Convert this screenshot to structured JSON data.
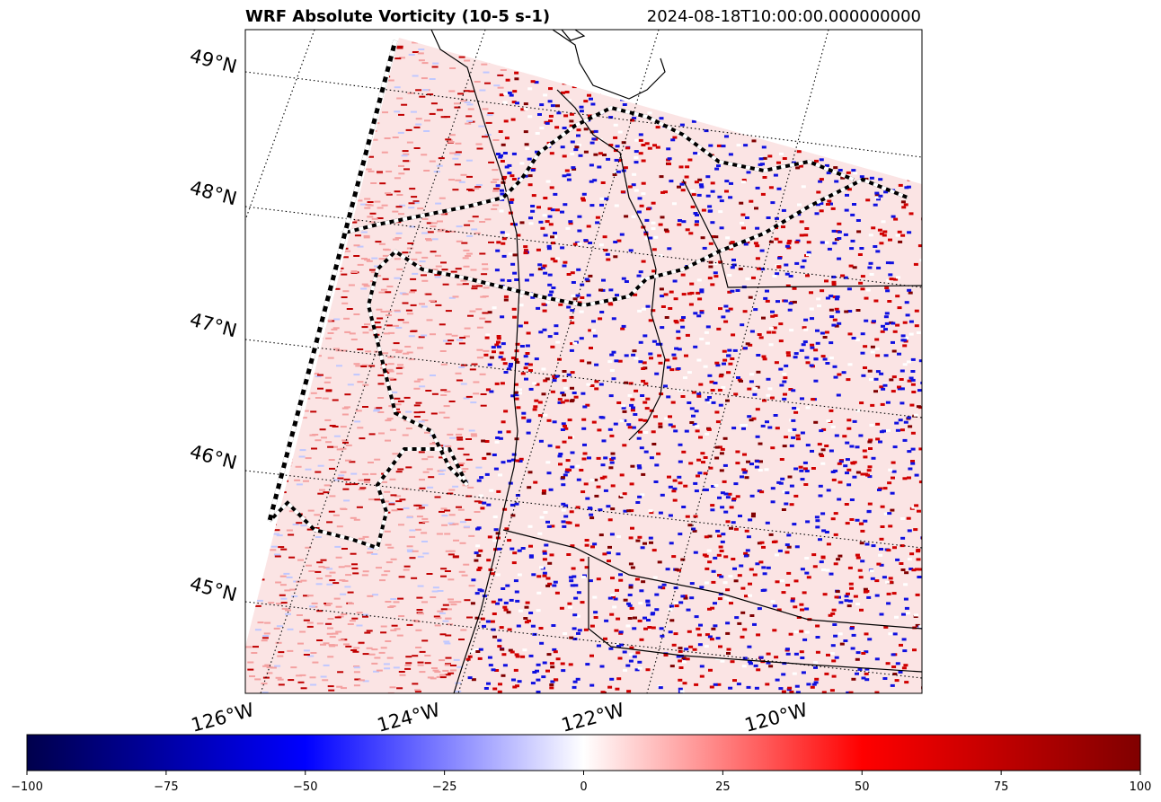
{
  "title": "WRF Absolute Vorticity (10-5 s-1)",
  "valid_time": "2024-08-18T10:00:00.000000000",
  "map": {
    "latitude_labels": [
      "49°N",
      "48°N",
      "47°N",
      "46°N",
      "45°N"
    ],
    "longitude_labels": [
      "126°W",
      "124°W",
      "122°W",
      "120°W"
    ],
    "field": "absolute vorticity",
    "colormap": "seismic",
    "gridlines": "dotted"
  },
  "colorbar": {
    "min": -100,
    "max": 100,
    "ticks": [
      -100,
      -75,
      -50,
      -25,
      0,
      25,
      50,
      75,
      100
    ],
    "tick_labels": [
      "−100",
      "−75",
      "−50",
      "−25",
      "0",
      "25",
      "50",
      "75",
      "100"
    ],
    "colors": [
      "#00004c",
      "#0000ff",
      "#ffffff",
      "#ff0000",
      "#800000"
    ]
  }
}
